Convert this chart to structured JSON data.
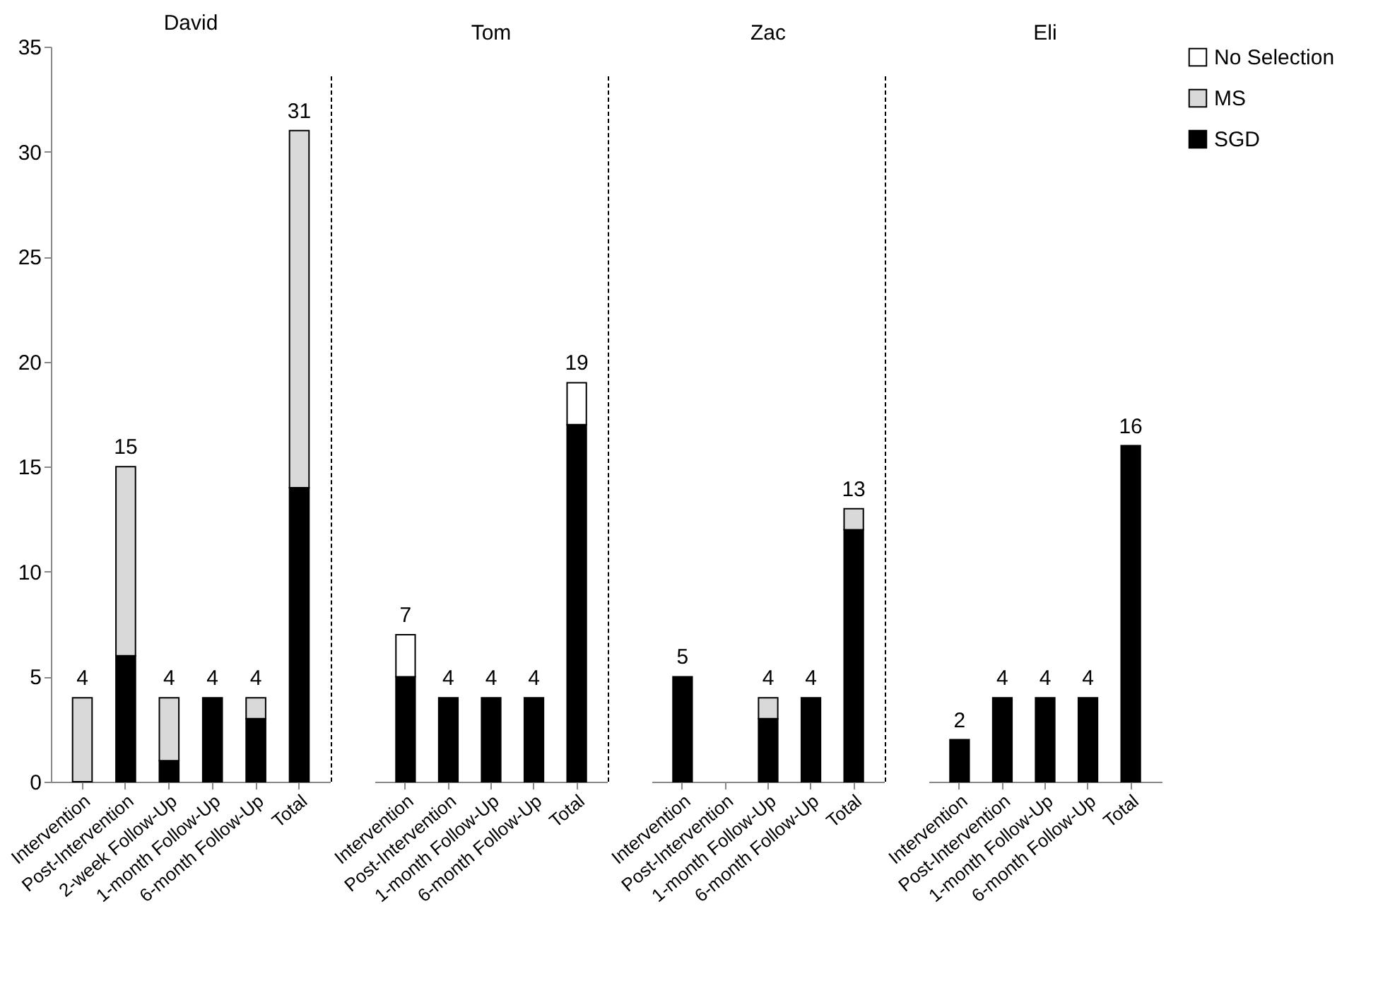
{
  "chart_data": [
    {
      "type": "bar",
      "title": "David",
      "stacked": true,
      "categories": [
        "Intervention",
        "Post-Intervention",
        "2-week Follow-Up",
        "1-month Follow-Up",
        "6-month Follow-Up",
        "Total"
      ],
      "ylim": [
        0,
        35
      ],
      "yticks": [
        0,
        5,
        10,
        15,
        20,
        25,
        30,
        35
      ],
      "series": [
        {
          "color": "#000000",
          "values": [
            null,
            6,
            1,
            4,
            3,
            14
          ]
        },
        {
          "color": "#d9d9d9",
          "values": [
            4,
            9,
            3,
            null,
            1,
            17
          ]
        }
      ],
      "totals": [
        "4",
        "15",
        "4",
        "4",
        "4",
        "31"
      ]
    },
    {
      "type": "bar",
      "title": "Tom",
      "stacked": true,
      "tick_labels": "x",
      "categories": [
        "Intervention",
        "Post-Intervention",
        "1-month Follow-Up",
        "6-month Follow-Up",
        "Total"
      ],
      "ylim": [
        0,
        35
      ],
      "series": [
        {
          "color": "#000000",
          "values": [
            5,
            4,
            4,
            4,
            17
          ]
        },
        {
          "color": "#ffffff",
          "values": [
            2,
            null,
            null,
            null,
            2
          ]
        }
      ],
      "totals": [
        "7",
        "4",
        "4",
        "4",
        "19"
      ]
    },
    {
      "type": "bar",
      "title": "Zac",
      "stacked": true,
      "tick_labels": "x",
      "categories": [
        "Intervention",
        "Post-Intervention",
        "1-month Follow-Up",
        "6-month Follow-Up",
        "Total"
      ],
      "ylim": [
        0,
        35
      ],
      "series": [
        {
          "color": "#000000",
          "values": [
            5,
            null,
            3,
            4,
            12
          ]
        },
        {
          "color": "#d9d9d9",
          "values": [
            null,
            null,
            1,
            null,
            1
          ]
        }
      ],
      "totals": [
        "5",
        null,
        "4",
        "4",
        "13"
      ]
    },
    {
      "type": "bar",
      "title": "Eli",
      "stacked": true,
      "tick_labels": "x",
      "legend": "top right",
      "categories": [
        "Intervention",
        "Post-Intervention",
        "1-month Follow-Up",
        "6-month Follow-Up",
        "Total"
      ],
      "ylim": [
        0,
        35
      ],
      "series": [
        {
          "name": "SGD",
          "color": "#000000",
          "values": [
            2,
            4,
            4,
            4,
            16
          ]
        },
        {
          "name": "MS",
          "color": "#d9d9d9",
          "values": [
            null,
            null,
            null,
            null,
            null
          ]
        },
        {
          "name": "No Selection",
          "color": "#ffffff",
          "values": [
            null,
            null,
            null,
            null,
            null
          ]
        }
      ],
      "totals": [
        "2",
        "4",
        "4",
        "4",
        "16"
      ]
    }
  ]
}
